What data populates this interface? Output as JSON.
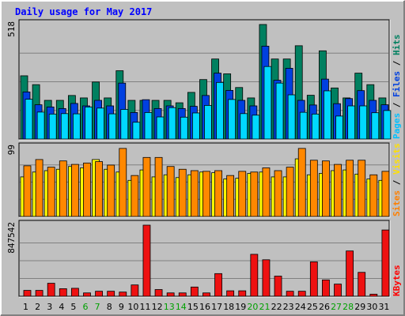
{
  "chart_data": {
    "type": "bar",
    "title": "Daily usage for May 2017",
    "categories": [
      "1",
      "2",
      "3",
      "4",
      "5",
      "6",
      "7",
      "8",
      "9",
      "10",
      "11",
      "12",
      "13",
      "14",
      "15",
      "16",
      "17",
      "18",
      "19",
      "20",
      "21",
      "22",
      "23",
      "24",
      "25",
      "26",
      "27",
      "28",
      "29",
      "30",
      "31"
    ],
    "weekend_days": [
      "6",
      "7",
      "13",
      "14",
      "20",
      "21",
      "27",
      "28"
    ],
    "panels": [
      {
        "id": "hits-panel",
        "ymax": 518,
        "ymax_label": "518",
        "side_labels": [
          {
            "text": "Pages",
            "color": "#00c0ff"
          },
          {
            "text": " / ",
            "color": "#000000"
          },
          {
            "text": "Files",
            "color": "#0040e0"
          },
          {
            "text": " / ",
            "color": "#000000"
          },
          {
            "text": "Hits",
            "color": "#008060"
          }
        ],
        "series": [
          {
            "name": "Hits",
            "color": "#008060",
            "values": [
              286,
              246,
              175,
              175,
              197,
              186,
              258,
              186,
              309,
              175,
              175,
              175,
              175,
              164,
              211,
              269,
              362,
              295,
              233,
              186,
              518,
              362,
              362,
              422,
              198,
              399,
              231,
              186,
              298,
              246,
              186
            ]
          },
          {
            "name": "Files",
            "color": "#0040e0",
            "values": [
              213,
              155,
              145,
              138,
              161,
              150,
              175,
              150,
              253,
              120,
              178,
              138,
              150,
              138,
              148,
              197,
              298,
              220,
              175,
              150,
              420,
              266,
              320,
              175,
              154,
              271,
              160,
              183,
              219,
              175,
              155
            ]
          },
          {
            "name": "Pages",
            "color": "#00d8ff",
            "values": [
              180,
              122,
              113,
              115,
              114,
              145,
              140,
              114,
              134,
              76,
              120,
              100,
              142,
              99,
              118,
              152,
              256,
              179,
              115,
              108,
              328,
              253,
              200,
              121,
              113,
              218,
              104,
              150,
              150,
              119,
              129
            ]
          }
        ]
      },
      {
        "id": "visits-panel",
        "ymax": 99,
        "ymax_label": "99",
        "side_labels": [
          {
            "text": "Sites",
            "color": "#ff8000"
          },
          {
            "text": " / ",
            "color": "#000000"
          },
          {
            "text": "Visits",
            "color": "#ffe000"
          }
        ],
        "series": [
          {
            "name": "Visits",
            "color": "#ffff00",
            "values": [
              57,
              64,
              66,
              68,
              72,
              70,
              82,
              68,
              64,
              52,
              67,
              57,
              60,
              56,
              60,
              64,
              63,
              54,
              55,
              62,
              64,
              57,
              57,
              83,
              60,
              62,
              66,
              67,
              61,
              54,
              52
            ]
          },
          {
            "name": "Sites",
            "color": "#ff8800",
            "values": [
              73,
              82,
              71,
              80,
              75,
              77,
              79,
              74,
              98,
              59,
              85,
              85,
              72,
              68,
              66,
              65,
              66,
              59,
              65,
              64,
              70,
              66,
              71,
              98,
              81,
              80,
              75,
              81,
              81,
              60,
              65
            ]
          }
        ]
      },
      {
        "id": "kbytes-panel",
        "ymax": 847542,
        "ymax_label": "847542",
        "side_labels": [
          {
            "text": "KBytes",
            "color": "#ff0000"
          }
        ],
        "series": [
          {
            "name": "KBytes",
            "color": "#ee1111",
            "values": [
              70000,
              70000,
              155000,
              90000,
              95000,
              40000,
              60000,
              60000,
              50000,
              135000,
              847542,
              80000,
              40000,
              40000,
              110000,
              40000,
              270000,
              65000,
              65000,
              500000,
              435000,
              240000,
              60000,
              60000,
              410000,
              195000,
              145000,
              540000,
              285000,
              25000,
              790000
            ]
          }
        ]
      }
    ]
  },
  "colors": {
    "frame_border": "#000000",
    "chart_bg": "#c0c0c0",
    "plot_bg": "#c0c0c0",
    "title": "#0000ff",
    "weekday_label": "#000000",
    "weekend_label": "#00a000"
  }
}
